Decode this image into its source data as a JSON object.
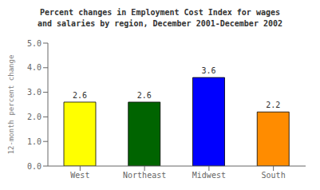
{
  "chart_data": {
    "type": "bar",
    "title": "Percent changes in Employment Cost Index for wages\nand salaries by region, December 2001-December 2002",
    "ylabel": "12-month percent change",
    "categories": [
      "West",
      "Northeast",
      "Midwest",
      "South"
    ],
    "values": [
      2.6,
      2.6,
      3.6,
      2.2
    ],
    "colors": [
      "#ffff00",
      "#006400",
      "#0000ff",
      "#ff8c00"
    ],
    "ylim": [
      0.0,
      5.0
    ],
    "yticks": [
      {
        "value": 0,
        "label": "0.0"
      },
      {
        "value": 1,
        "label": "1.0"
      },
      {
        "value": 2,
        "label": "2.0"
      },
      {
        "value": 3,
        "label": "3.0"
      },
      {
        "value": 4,
        "label": "4.0"
      },
      {
        "value": 5,
        "label": "5.0"
      }
    ],
    "data_labels": true,
    "grid": false
  }
}
